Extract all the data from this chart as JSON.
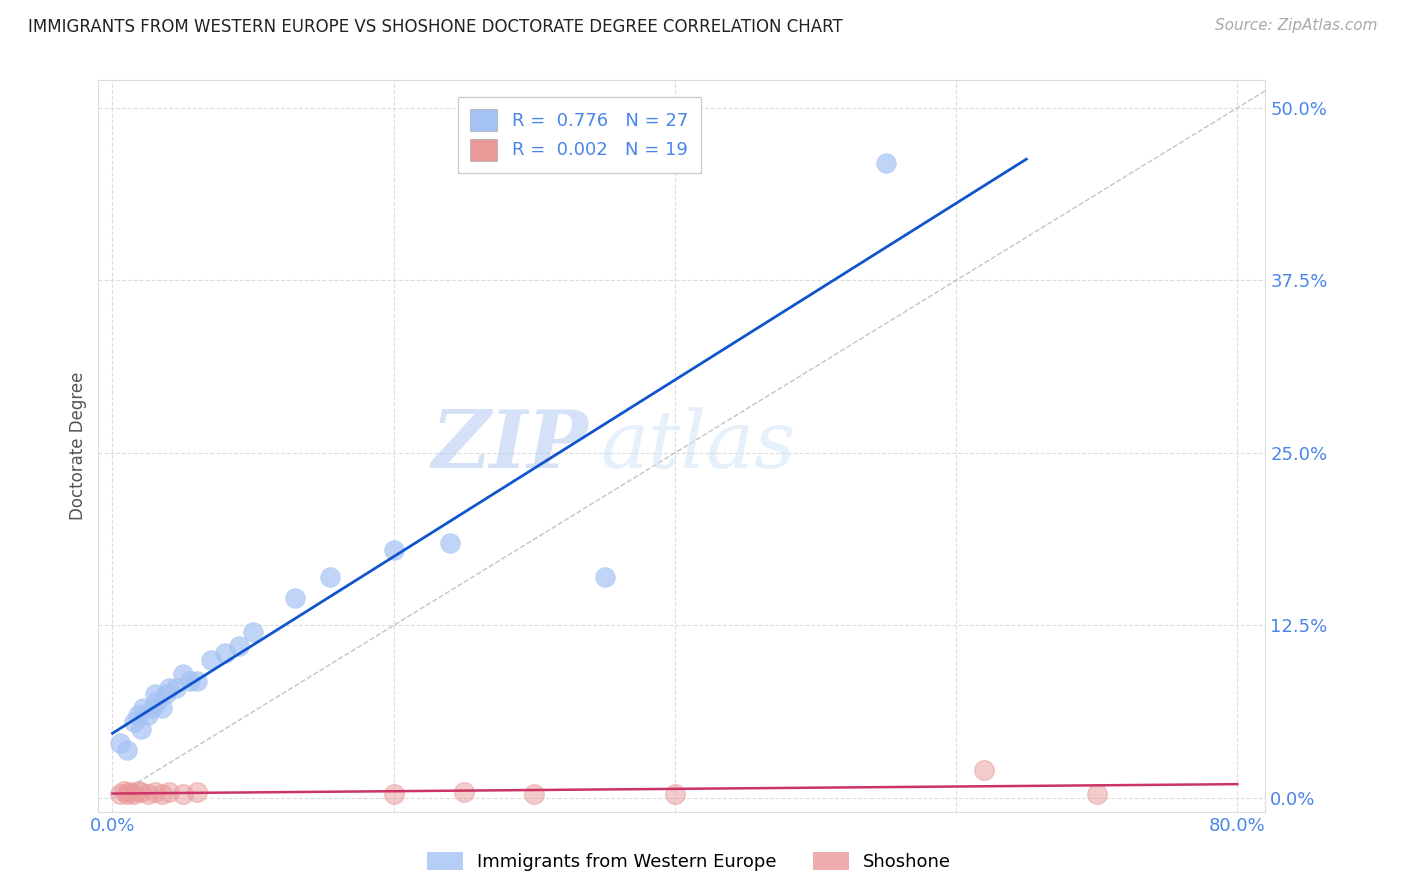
{
  "title": "IMMIGRANTS FROM WESTERN EUROPE VS SHOSHONE DOCTORATE DEGREE CORRELATION CHART",
  "source": "Source: ZipAtlas.com",
  "ylabel": "Doctorate Degree",
  "xlim": [
    -0.01,
    0.82
  ],
  "ylim": [
    -0.01,
    0.52
  ],
  "xticks": [
    0.0,
    0.2,
    0.4,
    0.6,
    0.8
  ],
  "xtick_labels": [
    "0.0%",
    "",
    "",
    "",
    "80.0%"
  ],
  "ytick_labels": [
    "0.0%",
    "12.5%",
    "25.0%",
    "37.5%",
    "50.0%"
  ],
  "yticks": [
    0.0,
    0.125,
    0.25,
    0.375,
    0.5
  ],
  "blue_R": 0.776,
  "blue_N": 27,
  "pink_R": 0.002,
  "pink_N": 19,
  "blue_color": "#a4c2f4",
  "pink_color": "#ea9999",
  "blue_line_color": "#1155cc",
  "pink_line_color": "#cc3366",
  "diag_line_color": "#aaaaaa",
  "watermark_zip": "ZIP",
  "watermark_atlas": "atlas",
  "blue_scatter_x": [
    0.005,
    0.01,
    0.015,
    0.018,
    0.02,
    0.022,
    0.025,
    0.028,
    0.03,
    0.032,
    0.035,
    0.038,
    0.04,
    0.045,
    0.05,
    0.055,
    0.06,
    0.07,
    0.08,
    0.09,
    0.1,
    0.13,
    0.155,
    0.2,
    0.24,
    0.35,
    0.55
  ],
  "blue_scatter_y": [
    0.04,
    0.035,
    0.055,
    0.06,
    0.05,
    0.065,
    0.06,
    0.065,
    0.075,
    0.07,
    0.065,
    0.075,
    0.08,
    0.08,
    0.09,
    0.085,
    0.085,
    0.1,
    0.105,
    0.11,
    0.12,
    0.145,
    0.16,
    0.18,
    0.185,
    0.16,
    0.46
  ],
  "pink_scatter_x": [
    0.005,
    0.008,
    0.01,
    0.012,
    0.015,
    0.018,
    0.02,
    0.025,
    0.03,
    0.035,
    0.04,
    0.05,
    0.06,
    0.2,
    0.25,
    0.3,
    0.4,
    0.62,
    0.7
  ],
  "pink_scatter_y": [
    0.003,
    0.005,
    0.003,
    0.004,
    0.003,
    0.005,
    0.004,
    0.003,
    0.004,
    0.003,
    0.004,
    0.003,
    0.004,
    0.003,
    0.004,
    0.003,
    0.003,
    0.02,
    0.003
  ],
  "background_color": "#ffffff",
  "grid_color": "#dddddd",
  "tick_color": "#4a86e8",
  "legend_text_color": "#4a86e8"
}
